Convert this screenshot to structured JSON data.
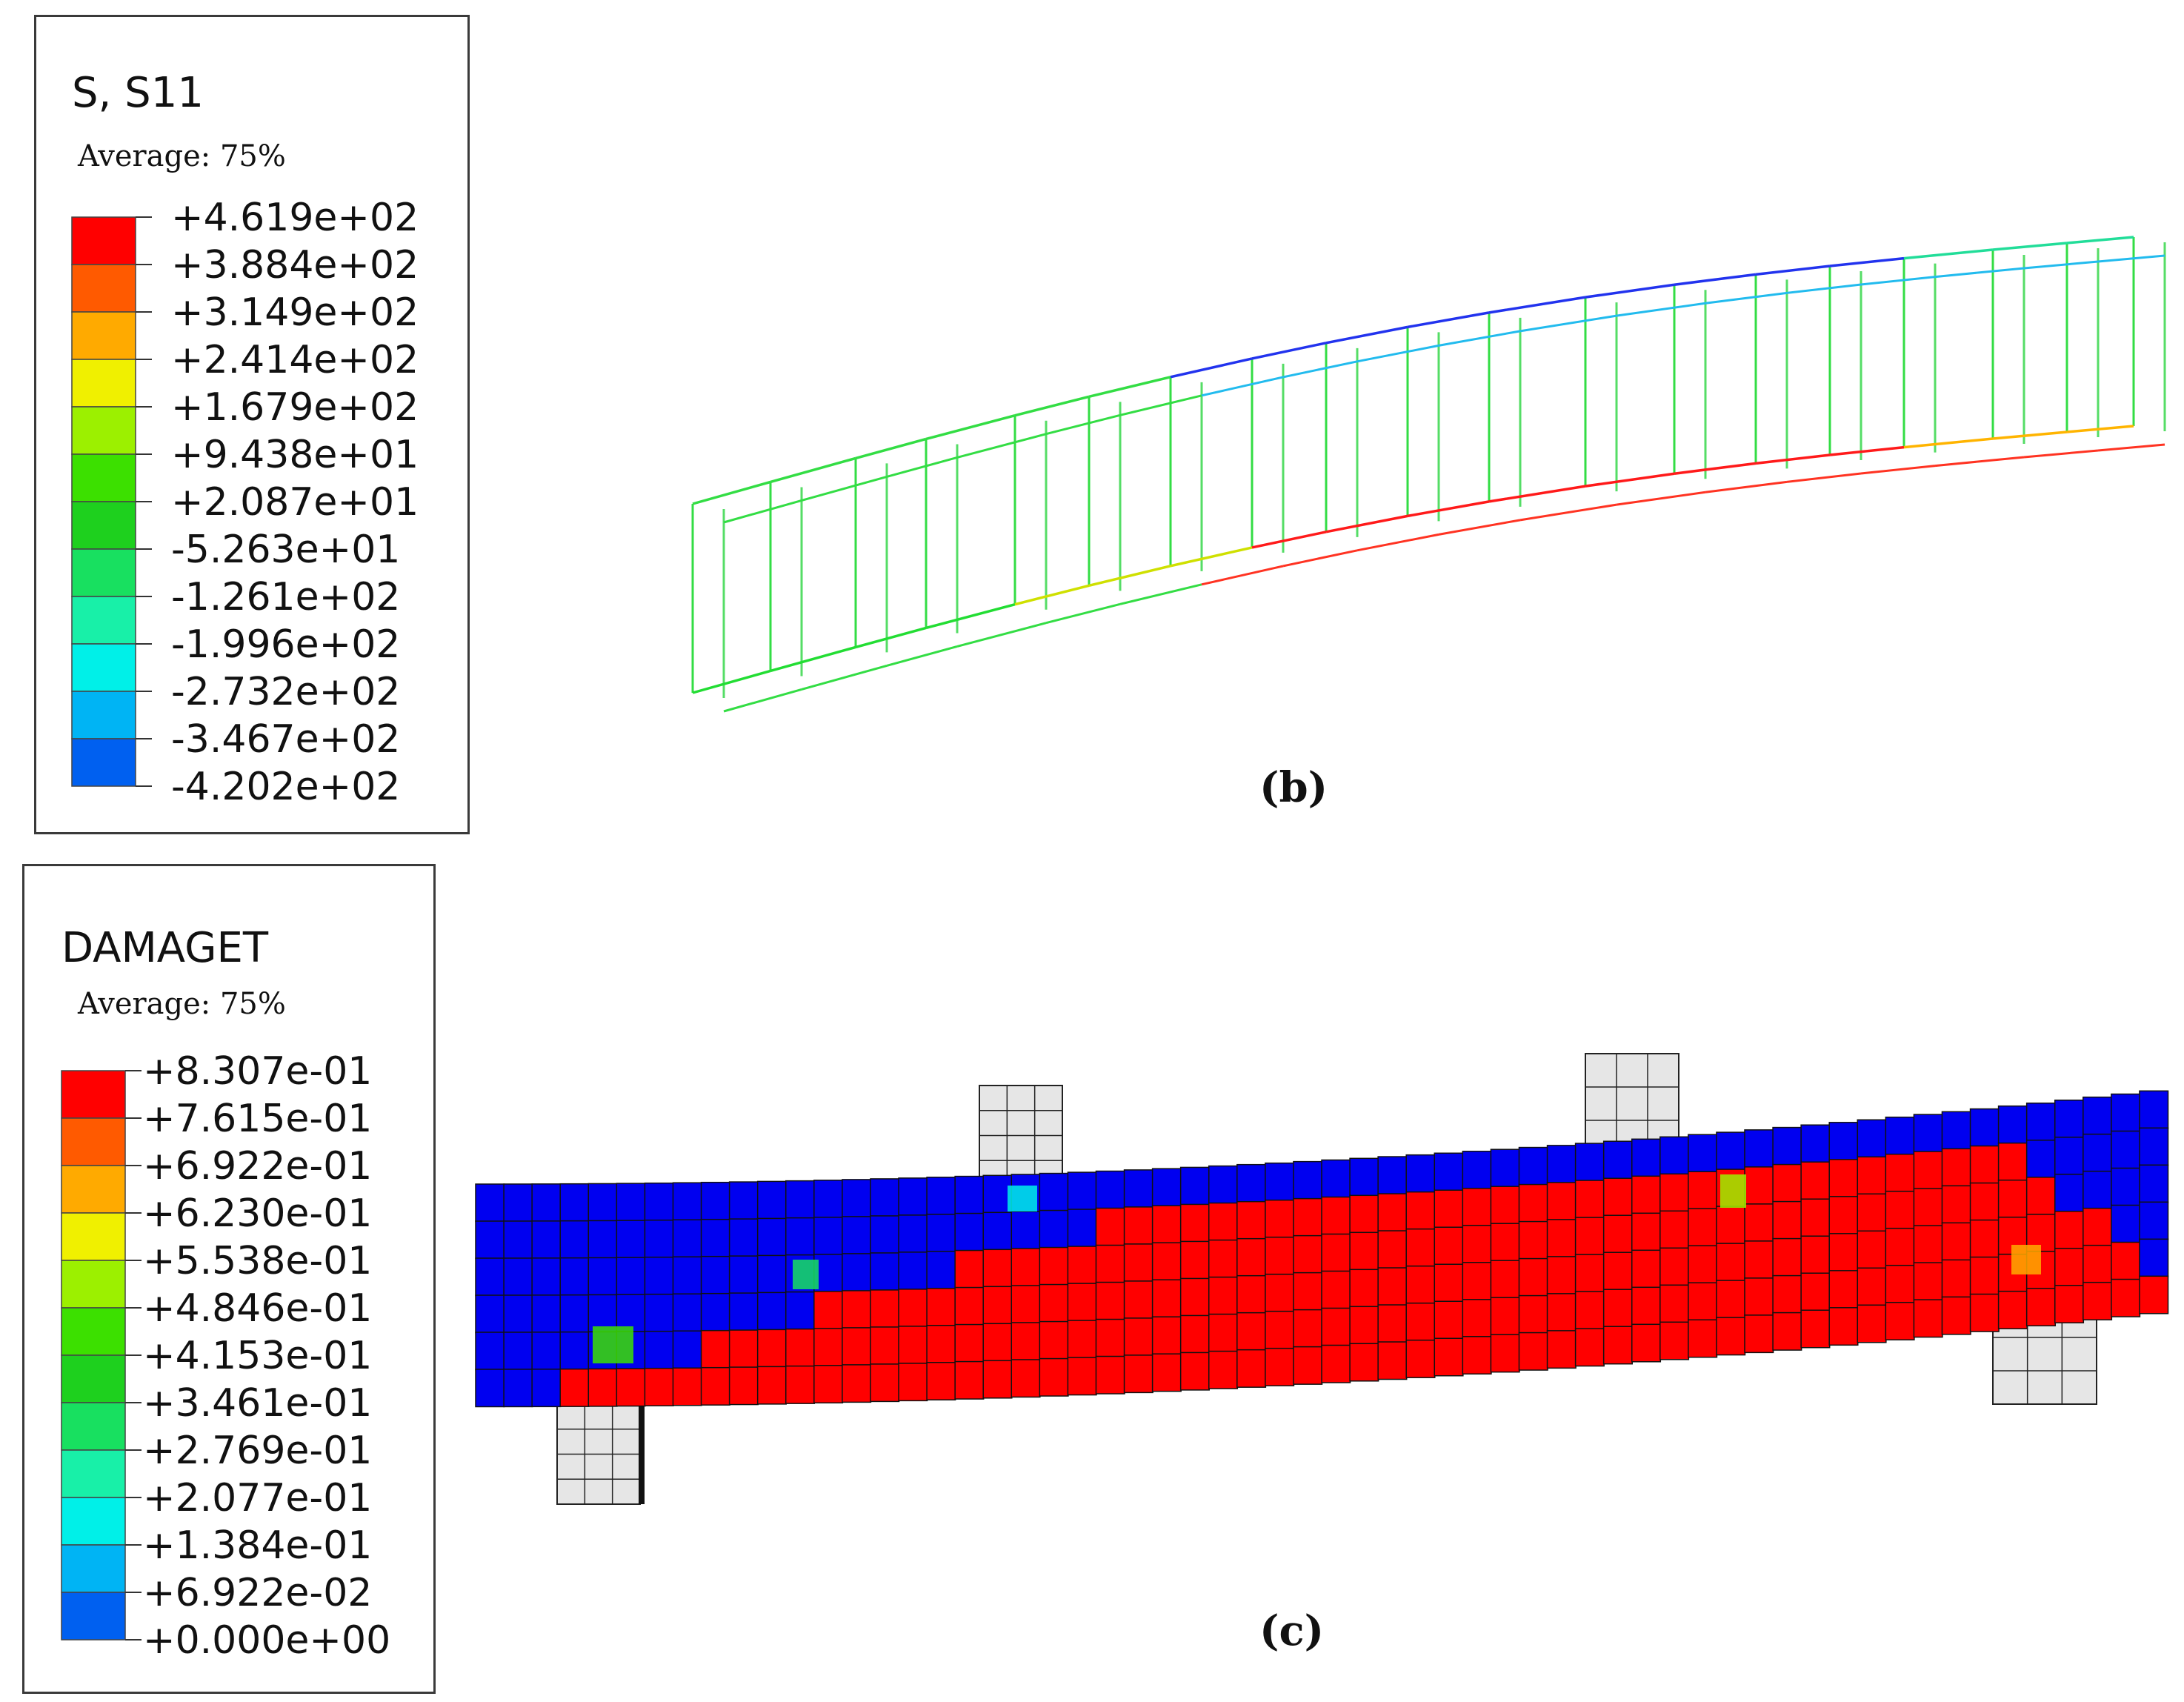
{
  "panel_b": {
    "caption": "(b)",
    "legend": {
      "title": "S, S11",
      "subtitle": "Average: 75%",
      "levels": [
        "+4.619e+02",
        "+3.884e+02",
        "+3.149e+02",
        "+2.414e+02",
        "+1.679e+02",
        "+9.438e+01",
        "+2.087e+01",
        "-5.263e+01",
        "-1.261e+02",
        "-1.996e+02",
        "-2.732e+02",
        "-3.467e+02",
        "-4.202e+02"
      ],
      "colors": [
        "#ff0000",
        "#ff5a00",
        "#ffaa00",
        "#f0f000",
        "#9cf000",
        "#3ce000",
        "#1ed01e",
        "#18e060",
        "#18f0a8",
        "#00f0e8",
        "#00b4f4",
        "#0060f0",
        "#0000f0"
      ]
    }
  },
  "panel_c": {
    "caption": "(c)",
    "legend": {
      "title": "DAMAGET",
      "subtitle": "Average: 75%",
      "levels": [
        "+8.307e-01",
        "+7.615e-01",
        "+6.922e-01",
        "+6.230e-01",
        "+5.538e-01",
        "+4.846e-01",
        "+4.153e-01",
        "+3.461e-01",
        "+2.769e-01",
        "+2.077e-01",
        "+1.384e-01",
        "+6.922e-02",
        "+0.000e+00"
      ],
      "colors": [
        "#ff0000",
        "#ff5a00",
        "#ffaa00",
        "#f0f000",
        "#9cf000",
        "#3ce000",
        "#1ed01e",
        "#18e060",
        "#18f0a8",
        "#00f0e8",
        "#00b4f4",
        "#0060f0",
        "#0000f0"
      ]
    }
  }
}
